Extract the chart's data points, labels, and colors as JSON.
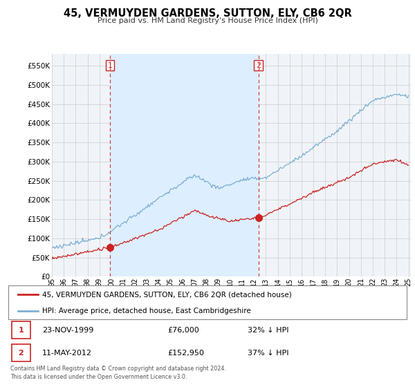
{
  "title": "45, VERMUYDEN GARDENS, SUTTON, ELY, CB6 2QR",
  "subtitle": "Price paid vs. HM Land Registry's House Price Index (HPI)",
  "ytick_vals": [
    0,
    50000,
    100000,
    150000,
    200000,
    250000,
    300000,
    350000,
    400000,
    450000,
    500000,
    550000
  ],
  "ylim": [
    0,
    580000
  ],
  "xlim_start": 1995.0,
  "xlim_end": 2025.2,
  "hpi_color": "#7bafd4",
  "hpi_fill_color": "#ddeeff",
  "sold_color": "#cc2222",
  "sale1_x": 1999.9,
  "sale1_y": 76000,
  "sale2_x": 2012.37,
  "sale2_y": 152950,
  "vline_color": "#cc4444",
  "legend_sold": "45, VERMUYDEN GARDENS, SUTTON, ELY, CB6 2QR (detached house)",
  "legend_hpi": "HPI: Average price, detached house, East Cambridgeshire",
  "sale1_date": "23-NOV-1999",
  "sale1_price": "£76,000",
  "sale1_hpi_text": "32% ↓ HPI",
  "sale2_date": "11-MAY-2012",
  "sale2_price": "£152,950",
  "sale2_hpi_text": "37% ↓ HPI",
  "footer": "Contains HM Land Registry data © Crown copyright and database right 2024.\nThis data is licensed under the Open Government Licence v3.0.",
  "background_color": "#ffffff",
  "plot_bg_color": "#f0f4f8"
}
